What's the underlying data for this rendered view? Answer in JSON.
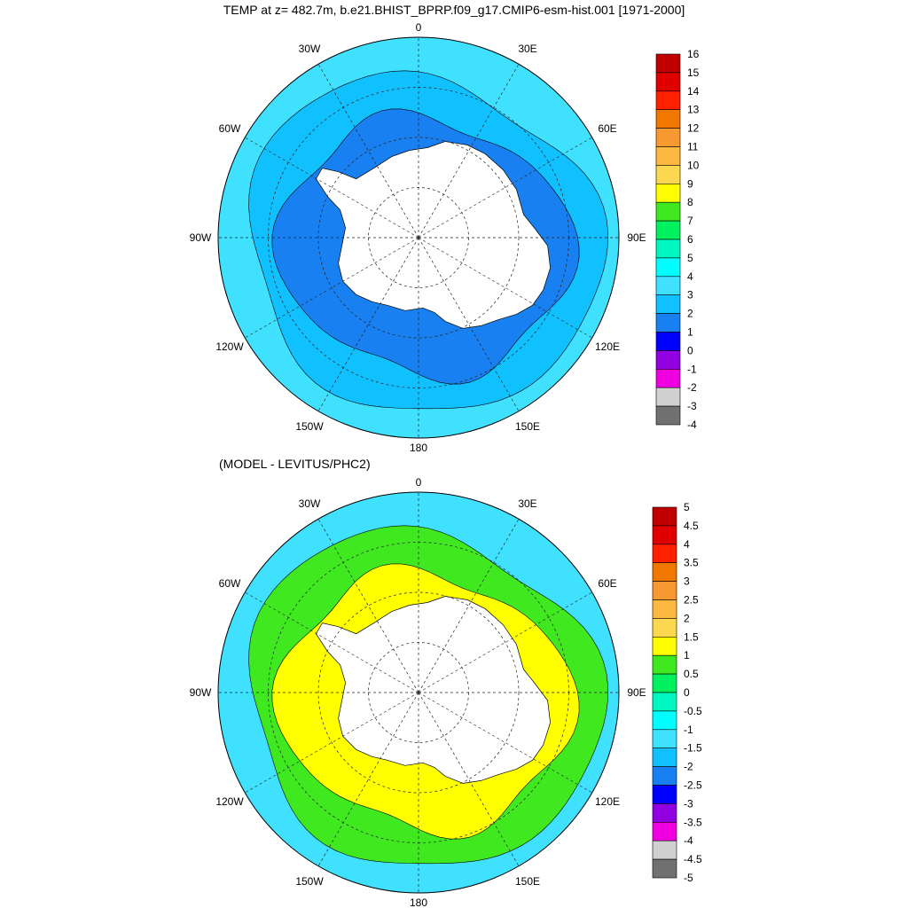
{
  "title": "TEMP at z= 482.7m, b.e21.BHIST_BPRP.f09_g17.CMIP6-esm-hist.001 [1971-2000]",
  "subtitle": "(MODEL - LEVITUS/PHC2)",
  "longitude_labels": [
    "0",
    "30E",
    "60E",
    "90E",
    "120E",
    "150E",
    "180",
    "150W",
    "120W",
    "90W",
    "60W",
    "30W"
  ],
  "top_map": {
    "colorbar_labels": [
      "16",
      "15",
      "14",
      "13",
      "12",
      "11",
      "10",
      "9",
      "8",
      "7",
      "6",
      "5",
      "4",
      "3",
      "2",
      "1",
      "0",
      "-1",
      "-2",
      "-3",
      "-4"
    ],
    "colorbar_colors": [
      "#c00000",
      "#e00000",
      "#ff2000",
      "#f07800",
      "#f89830",
      "#fcb840",
      "#fcd850",
      "#ffff00",
      "#40e820",
      "#00f060",
      "#00f8c0",
      "#00ffff",
      "#40e0ff",
      "#10c0ff",
      "#1880f0",
      "#0000ff",
      "#9000e0",
      "#f000e0",
      "#d0d0d0",
      "#707070"
    ],
    "zones": [
      {
        "name": "outer",
        "color": "#40e0ff"
      },
      {
        "name": "mid",
        "color": "#10c0ff"
      },
      {
        "name": "inner",
        "color": "#1880f0"
      }
    ]
  },
  "bottom_map": {
    "colorbar_labels": [
      "5",
      "4.5",
      "4",
      "3.5",
      "3",
      "2.5",
      "2",
      "1.5",
      "1",
      "0.5",
      "0",
      "-0.5",
      "-1",
      "-1.5",
      "-2",
      "-2.5",
      "-3",
      "-3.5",
      "-4",
      "-4.5",
      "-5"
    ],
    "colorbar_colors": [
      "#c00000",
      "#e00000",
      "#ff2000",
      "#f07800",
      "#f89830",
      "#fcb840",
      "#fcd850",
      "#ffff00",
      "#40e820",
      "#00f060",
      "#00f8c0",
      "#00ffff",
      "#40e0ff",
      "#10c0ff",
      "#1880f0",
      "#0000ff",
      "#9000e0",
      "#f000e0",
      "#d0d0d0",
      "#707070"
    ],
    "zones": [
      {
        "name": "outer",
        "color": "#40e0ff"
      },
      {
        "name": "mid",
        "color": "#40e820"
      },
      {
        "name": "inner",
        "color": "#ffff00"
      }
    ]
  }
}
